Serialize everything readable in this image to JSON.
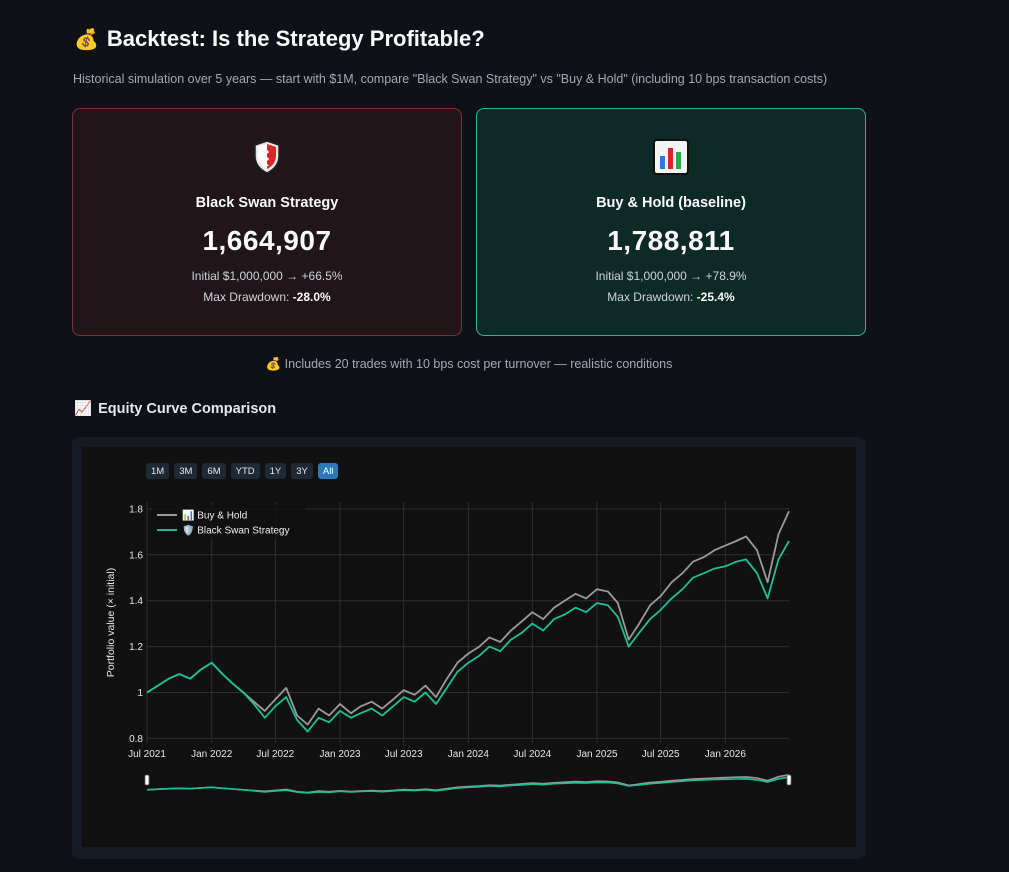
{
  "header": {
    "title_icon": "money-bag-icon",
    "title_emoji": "💰",
    "title": "Backtest: Is the Strategy Profitable?",
    "subtitle": "Historical simulation over 5 years — start with $1M, compare \"Black Swan Strategy\" vs \"Buy & Hold\" (including 10 bps transaction costs)"
  },
  "cards": {
    "strategy": {
      "icon": "shield-icon",
      "name": "Black Swan Strategy",
      "value": "1,664,907",
      "initial_line": "Initial $1,000,000 → +66.5%",
      "drawdown_label": "Max Drawdown: ",
      "drawdown_value": "-28.0%",
      "border_color": "#7a3334"
    },
    "baseline": {
      "icon": "bar-chart-icon",
      "name": "Buy & Hold (baseline)",
      "value": "1,788,811",
      "initial_line": "Initial $1,000,000 → +78.9%",
      "drawdown_label": "Max Drawdown: ",
      "drawdown_value": "-25.4%",
      "border_color": "#2bb48a"
    }
  },
  "note": {
    "emoji": "💰",
    "text": "Includes 20 trades with 10 bps cost per turnover — realistic conditions"
  },
  "section": {
    "emoji": "📈",
    "icon": "chart-increasing-icon",
    "title": "Equity Curve Comparison"
  },
  "range_selector": {
    "buttons": [
      "1M",
      "3M",
      "6M",
      "YTD",
      "1Y",
      "3Y",
      "All"
    ],
    "active": "All"
  },
  "chart_data": {
    "type": "line",
    "title": "",
    "xlabel": "",
    "ylabel": "Portfolio value (× initial)",
    "x_ticks": [
      "Jul 2021",
      "Jan 2022",
      "Jul 2022",
      "Jan 2023",
      "Jul 2023",
      "Jan 2024",
      "Jul 2024",
      "Jan 2025",
      "Jul 2025",
      "Jan 2026"
    ],
    "y_ticks": [
      0.8,
      1,
      1.2,
      1.4,
      1.6,
      1.8
    ],
    "ylim": [
      0.78,
      1.83
    ],
    "xlim": [
      "2021-07-01",
      "2026-07-01"
    ],
    "grid": true,
    "legend_position": "top-left",
    "range_slider": true,
    "x": [
      "2021-07",
      "2021-08",
      "2021-09",
      "2021-10",
      "2021-11",
      "2021-12",
      "2022-01",
      "2022-02",
      "2022-03",
      "2022-04",
      "2022-05",
      "2022-06",
      "2022-07",
      "2022-08",
      "2022-09",
      "2022-10",
      "2022-11",
      "2022-12",
      "2023-01",
      "2023-02",
      "2023-03",
      "2023-04",
      "2023-05",
      "2023-06",
      "2023-07",
      "2023-08",
      "2023-09",
      "2023-10",
      "2023-11",
      "2023-12",
      "2024-01",
      "2024-02",
      "2024-03",
      "2024-04",
      "2024-05",
      "2024-06",
      "2024-07",
      "2024-08",
      "2024-09",
      "2024-10",
      "2024-11",
      "2024-12",
      "2025-01",
      "2025-02",
      "2025-03",
      "2025-04",
      "2025-05",
      "2025-06",
      "2025-07",
      "2025-08",
      "2025-09",
      "2025-10",
      "2025-11",
      "2025-12",
      "2026-01",
      "2026-02",
      "2026-03",
      "2026-04",
      "2026-05",
      "2026-06",
      "2026-07"
    ],
    "series": [
      {
        "name": "Buy & Hold",
        "legend_emoji": "📊",
        "color": "#9a9a9a",
        "values": [
          1.0,
          1.03,
          1.06,
          1.08,
          1.06,
          1.1,
          1.13,
          1.08,
          1.04,
          1.0,
          0.96,
          0.92,
          0.97,
          1.02,
          0.9,
          0.86,
          0.93,
          0.9,
          0.95,
          0.91,
          0.94,
          0.96,
          0.93,
          0.97,
          1.01,
          0.99,
          1.03,
          0.98,
          1.06,
          1.13,
          1.17,
          1.2,
          1.24,
          1.22,
          1.27,
          1.31,
          1.35,
          1.32,
          1.37,
          1.4,
          1.43,
          1.41,
          1.45,
          1.44,
          1.39,
          1.23,
          1.3,
          1.38,
          1.42,
          1.48,
          1.52,
          1.57,
          1.59,
          1.62,
          1.64,
          1.66,
          1.68,
          1.62,
          1.48,
          1.69,
          1.79
        ]
      },
      {
        "name": "Black Swan Strategy",
        "legend_emoji": "🛡️",
        "color": "#1fbf94",
        "values": [
          1.0,
          1.03,
          1.06,
          1.08,
          1.06,
          1.1,
          1.13,
          1.08,
          1.04,
          1.0,
          0.95,
          0.89,
          0.94,
          0.98,
          0.88,
          0.83,
          0.89,
          0.87,
          0.92,
          0.89,
          0.91,
          0.93,
          0.9,
          0.94,
          0.98,
          0.96,
          1.0,
          0.95,
          1.02,
          1.09,
          1.13,
          1.16,
          1.2,
          1.18,
          1.23,
          1.26,
          1.3,
          1.27,
          1.32,
          1.34,
          1.37,
          1.35,
          1.39,
          1.38,
          1.33,
          1.2,
          1.26,
          1.32,
          1.36,
          1.41,
          1.45,
          1.5,
          1.52,
          1.54,
          1.55,
          1.57,
          1.58,
          1.52,
          1.41,
          1.58,
          1.66
        ]
      }
    ]
  }
}
